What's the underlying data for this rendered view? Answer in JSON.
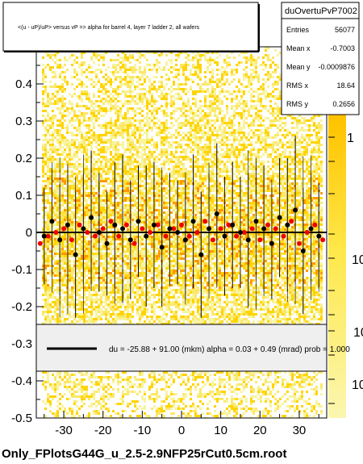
{
  "title_box": {
    "text": "<(u - uP)/uP> versus   vP => alpha for barrel 4, layer 7 ladder 2, all wafers"
  },
  "stats_box": {
    "name": "duOvertuPvP7002",
    "rows": [
      {
        "label": "Entries",
        "value": "56077"
      },
      {
        "label": "Mean x",
        "value": "-0.7003"
      },
      {
        "label": "Mean y",
        "value": "-0.0009876"
      },
      {
        "label": "RMS x",
        "value": "18.64"
      },
      {
        "label": "RMS y",
        "value": "0.2656"
      }
    ]
  },
  "fit_box": {
    "text": "du =  -25.88 +  91.00 (mkm) alpha =     0.03 +   0.49 (mrad) prob = 1.000"
  },
  "footer": {
    "filename": "Only_FPlotsG44G_u_2.5-2.9NFP25rCut0.5cm.root"
  },
  "colors": {
    "palette_low": "#f8f4a0",
    "palette_mid": "#ffd400",
    "palette_high": "#ff9800",
    "profile_markers": "#000000",
    "overlay_markers": "#ee0000",
    "fit_line": "#000000"
  },
  "chart_data": {
    "type": "scatter",
    "title": "<(u - uP)/uP> versus   vP => alpha for barrel 4, layer 7 ladder 2, all wafers",
    "xlabel": "",
    "ylabel": "",
    "xlim": [
      -37,
      37
    ],
    "ylim": [
      -0.5,
      0.5
    ],
    "x_ticks": [
      -30,
      -20,
      -10,
      0,
      10,
      20,
      30
    ],
    "y_ticks": [
      -0.5,
      -0.4,
      -0.3,
      -0.2,
      -0.1,
      0,
      0.1,
      0.2,
      0.3,
      0.4
    ],
    "y_tick_labels": [
      "-0.5",
      "-0.4",
      "-0.3",
      "-0.2",
      "-0.1",
      "0",
      "0.1",
      "0.2",
      "0.3",
      "0.4"
    ],
    "z_axis": {
      "scale": "log",
      "tick_labels": [
        "1",
        "10",
        "10",
        "10"
      ]
    },
    "grid": false,
    "fit": {
      "offset": -25.88,
      "offset_err": 91.0,
      "slope": 0.03,
      "slope_err": 0.49,
      "prob": 1.0,
      "line_y": 0.0
    },
    "series": [
      {
        "name": "profile",
        "marker": "black",
        "x": [
          -35,
          -33,
          -31,
          -29,
          -27,
          -25,
          -23,
          -21,
          -19,
          -17,
          -15,
          -13,
          -11,
          -9,
          -7,
          -5,
          -3,
          -1,
          1,
          3,
          5,
          7,
          9,
          11,
          13,
          15,
          17,
          19,
          21,
          23,
          25,
          27,
          29,
          31,
          33,
          35
        ],
        "y": [
          -0.01,
          0.03,
          -0.02,
          0.02,
          -0.06,
          0.01,
          0.04,
          0.0,
          -0.03,
          0.02,
          0.01,
          -0.02,
          0.03,
          -0.01,
          0.02,
          -0.04,
          0.01,
          0.0,
          -0.02,
          0.03,
          -0.06,
          0.01,
          0.05,
          -0.01,
          0.02,
          0.0,
          -0.02,
          0.03,
          0.01,
          -0.03,
          0.04,
          0.02,
          0.06,
          -0.05,
          0.01,
          -0.01
        ],
        "err": [
          0.13,
          0.14,
          0.15,
          0.16,
          0.17,
          0.15,
          0.18,
          0.16,
          0.14,
          0.17,
          0.2,
          0.16,
          0.15,
          0.19,
          0.17,
          0.16,
          0.15,
          0.14,
          0.16,
          0.18,
          0.17,
          0.15,
          0.19,
          0.16,
          0.17,
          0.15,
          0.18,
          0.16,
          0.17,
          0.15,
          0.16,
          0.18,
          0.2,
          0.17,
          0.15,
          0.14
        ]
      },
      {
        "name": "overlay",
        "marker": "red",
        "x": [
          -36,
          -34,
          -32,
          -30,
          -28,
          -26,
          -24,
          -22,
          -20,
          -18,
          -16,
          -14,
          -12,
          -10,
          -8,
          -6,
          -4,
          -2,
          0,
          2,
          4,
          6,
          8,
          10,
          12,
          14,
          16,
          18,
          20,
          22,
          24,
          26,
          28,
          30,
          32,
          34,
          36
        ],
        "y": [
          -0.03,
          -0.01,
          0.0,
          0.01,
          -0.02,
          0.02,
          0.0,
          -0.01,
          0.01,
          0.03,
          -0.01,
          0.02,
          -0.03,
          0.01,
          0.0,
          0.02,
          -0.01,
          0.01,
          0.02,
          -0.01,
          0.0,
          0.03,
          -0.02,
          0.01,
          0.02,
          -0.01,
          0.0,
          0.01,
          -0.02,
          0.02,
          0.01,
          -0.01,
          0.03,
          -0.03,
          0.0,
          0.02,
          -0.02
        ]
      }
    ]
  }
}
